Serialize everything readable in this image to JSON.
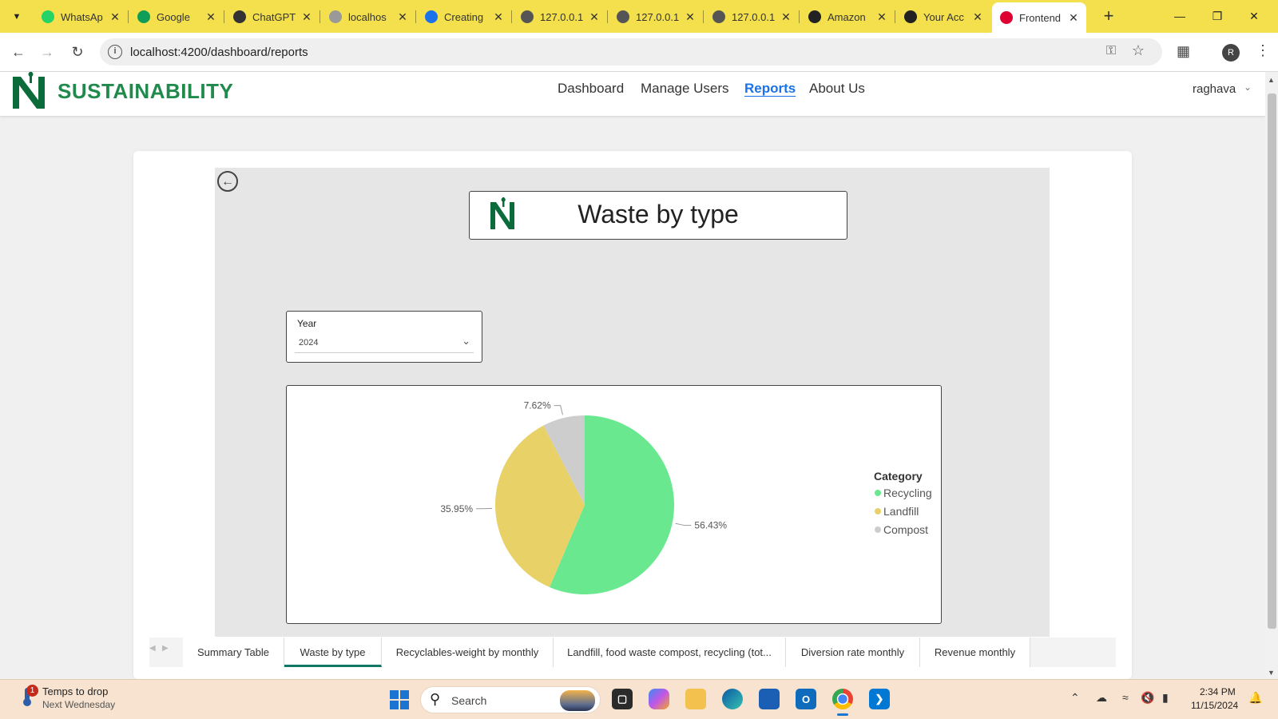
{
  "browser": {
    "tabs": [
      {
        "title": "WhatsAp",
        "icon": "whatsapp-icon",
        "color": "#25d366"
      },
      {
        "title": "Google",
        "icon": "google-sheets-icon",
        "color": "#0f9d58"
      },
      {
        "title": "ChatGPT",
        "icon": "chatgpt-icon",
        "color": "#333333"
      },
      {
        "title": "localhos",
        "icon": "angular-icon",
        "color": "#999999"
      },
      {
        "title": "Creating",
        "icon": "coursera-icon",
        "color": "#1a73e8"
      },
      {
        "title": "127.0.0.1",
        "icon": "globe-icon",
        "color": "#555555"
      },
      {
        "title": "127.0.0.1",
        "icon": "globe-icon",
        "color": "#555555"
      },
      {
        "title": "127.0.0.1",
        "icon": "globe-icon",
        "color": "#555555"
      },
      {
        "title": "Amazon",
        "icon": "amazon-icon",
        "color": "#222222"
      },
      {
        "title": "Your Acc",
        "icon": "amazon-icon",
        "color": "#222222"
      },
      {
        "title": "Frontend",
        "icon": "angular-icon",
        "color": "#dd0031"
      }
    ],
    "url": "localhost:4200/dashboard/reports",
    "profile_initial": "R"
  },
  "app": {
    "brand": "SUSTAINABILITY",
    "nav": [
      "Dashboard",
      "Manage Users",
      "Reports",
      "About Us"
    ],
    "active_nav": "Reports",
    "user": "raghava",
    "brand_color": "#1f8a4c",
    "accent_color": "#1a73e8"
  },
  "report": {
    "title": "Waste by type",
    "slicer": {
      "label": "Year",
      "value": "2024"
    },
    "pages": [
      "Summary Table",
      "Waste by type",
      "Recyclables-weight by monthly",
      "Landfill, food waste compost, recycling (tot...",
      "Diversion rate monthly",
      "Revenue monthly"
    ],
    "active_page": "Waste by type"
  },
  "chart_data": {
    "type": "pie",
    "legend_title": "Category",
    "legend_position": "right",
    "categories": [
      "Recycling",
      "Landfill",
      "Compost"
    ],
    "values": [
      56.43,
      35.95,
      7.62
    ],
    "labels": [
      "56.43%",
      "35.95%",
      "7.62%"
    ],
    "colors": [
      "#69e88f",
      "#e8d268",
      "#cdcdcd"
    ]
  },
  "taskbar": {
    "weather_title": "Temps to drop",
    "weather_sub": "Next Wednesday",
    "weather_badge": "1",
    "search_placeholder": "Search",
    "time": "2:34 PM",
    "date": "11/15/2024"
  }
}
